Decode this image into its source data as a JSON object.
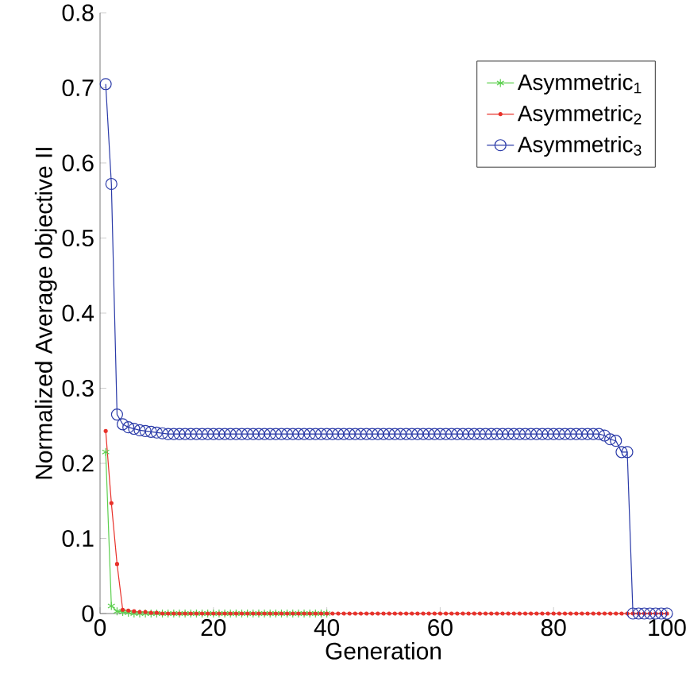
{
  "chart_data": {
    "type": "line",
    "xlabel": "Generation",
    "ylabel": "Normalized Average objective II",
    "xlim": [
      0,
      100
    ],
    "xticks": [
      0,
      20,
      40,
      60,
      80,
      100
    ],
    "ylim": [
      0,
      0.8
    ],
    "yticks": [
      0,
      0.1,
      0.2,
      0.3,
      0.4,
      0.5,
      0.6,
      0.7,
      0.8
    ],
    "legend": "top right",
    "grid": false,
    "series": [
      {
        "name": "Asymmetric$_{1}$",
        "color": "#5ccf4e",
        "marker": "cross",
        "x": [
          1,
          2,
          3,
          4,
          5,
          6,
          7,
          8,
          9,
          10,
          11,
          12,
          13,
          14,
          15,
          16,
          17,
          18,
          19,
          20,
          21,
          22,
          23,
          24,
          25,
          26,
          27,
          28,
          29,
          30,
          31,
          32,
          33,
          34,
          35,
          36,
          37,
          38,
          39,
          40
        ],
        "values": [
          0.215,
          0.01,
          0.003,
          0.002,
          0.001,
          0,
          0,
          0,
          0,
          0,
          0,
          0,
          0,
          0,
          0,
          0,
          0,
          0,
          0,
          0,
          0,
          0,
          0,
          0,
          0,
          0,
          0,
          0,
          0,
          0,
          0,
          0,
          0,
          0,
          0,
          0,
          0,
          0,
          0,
          0
        ]
      },
      {
        "name": "Asymmetric$_{2}$",
        "color": "#e8312a",
        "marker": "dot",
        "x": [
          1,
          2,
          3,
          4,
          5,
          6,
          7,
          8,
          9,
          10,
          11,
          12,
          13,
          14,
          15,
          16,
          17,
          18,
          19,
          20,
          21,
          22,
          23,
          24,
          25,
          26,
          27,
          28,
          29,
          30,
          31,
          32,
          33,
          34,
          35,
          36,
          37,
          38,
          39,
          40,
          41,
          42,
          43,
          44,
          45,
          46,
          47,
          48,
          49,
          50,
          51,
          52,
          53,
          54,
          55,
          56,
          57,
          58,
          59,
          60,
          61,
          62,
          63,
          64,
          65,
          66,
          67,
          68,
          69,
          70,
          71,
          72,
          73,
          74,
          75,
          76,
          77,
          78,
          79,
          80,
          81,
          82,
          83,
          84,
          85,
          86,
          87,
          88,
          89,
          90,
          91,
          92,
          93,
          94,
          95,
          96,
          97,
          98,
          99,
          100
        ],
        "values": [
          0.243,
          0.147,
          0.066,
          0.005,
          0.004,
          0.003,
          0.002,
          0.002,
          0.001,
          0.001,
          0,
          0,
          0,
          0,
          0,
          0,
          0,
          0,
          0,
          0,
          0,
          0,
          0,
          0,
          0,
          0,
          0,
          0,
          0,
          0,
          0,
          0,
          0,
          0,
          0,
          0,
          0,
          0,
          0,
          0,
          0,
          0,
          0,
          0,
          0,
          0,
          0,
          0,
          0,
          0,
          0,
          0,
          0,
          0,
          0,
          0,
          0,
          0,
          0,
          0,
          0,
          0,
          0,
          0,
          0,
          0,
          0,
          0,
          0,
          0,
          0,
          0,
          0,
          0,
          0,
          0,
          0,
          0,
          0,
          0,
          0,
          0,
          0,
          0,
          0,
          0,
          0,
          0,
          0,
          0,
          0,
          0,
          0,
          0,
          0,
          0,
          0,
          0,
          0,
          0
        ]
      },
      {
        "name": "Asymmetric$_{3}$",
        "color": "#2a3aa8",
        "marker": "circle",
        "x": [
          1,
          2,
          3,
          4,
          5,
          6,
          7,
          8,
          9,
          10,
          11,
          12,
          13,
          14,
          15,
          16,
          17,
          18,
          19,
          20,
          21,
          22,
          23,
          24,
          25,
          26,
          27,
          28,
          29,
          30,
          31,
          32,
          33,
          34,
          35,
          36,
          37,
          38,
          39,
          40,
          41,
          42,
          43,
          44,
          45,
          46,
          47,
          48,
          49,
          50,
          51,
          52,
          53,
          54,
          55,
          56,
          57,
          58,
          59,
          60,
          61,
          62,
          63,
          64,
          65,
          66,
          67,
          68,
          69,
          70,
          71,
          72,
          73,
          74,
          75,
          76,
          77,
          78,
          79,
          80,
          81,
          82,
          83,
          84,
          85,
          86,
          87,
          88,
          89,
          90,
          91,
          92,
          93,
          94,
          95,
          96,
          97,
          98,
          99,
          100
        ],
        "values": [
          0.705,
          0.572,
          0.265,
          0.252,
          0.248,
          0.246,
          0.244,
          0.243,
          0.242,
          0.241,
          0.24,
          0.239,
          0.239,
          0.239,
          0.239,
          0.239,
          0.239,
          0.239,
          0.239,
          0.239,
          0.239,
          0.239,
          0.239,
          0.239,
          0.239,
          0.239,
          0.239,
          0.239,
          0.239,
          0.239,
          0.239,
          0.239,
          0.239,
          0.239,
          0.239,
          0.239,
          0.239,
          0.239,
          0.239,
          0.239,
          0.239,
          0.239,
          0.239,
          0.239,
          0.239,
          0.239,
          0.239,
          0.239,
          0.239,
          0.239,
          0.239,
          0.239,
          0.239,
          0.239,
          0.239,
          0.239,
          0.239,
          0.239,
          0.239,
          0.239,
          0.239,
          0.239,
          0.239,
          0.239,
          0.239,
          0.239,
          0.239,
          0.239,
          0.239,
          0.239,
          0.239,
          0.239,
          0.239,
          0.239,
          0.239,
          0.239,
          0.239,
          0.239,
          0.239,
          0.239,
          0.239,
          0.239,
          0.239,
          0.239,
          0.239,
          0.239,
          0.239,
          0.239,
          0.237,
          0.232,
          0.23,
          0.215,
          0.215,
          0,
          0,
          0,
          0,
          0,
          0,
          0
        ]
      }
    ]
  }
}
